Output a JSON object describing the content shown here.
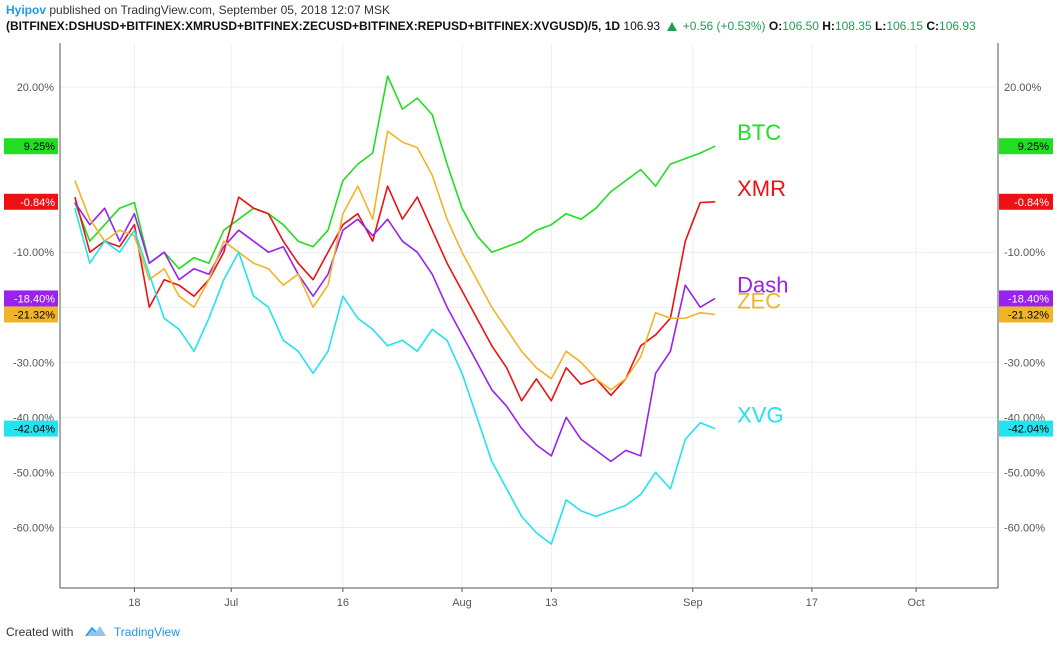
{
  "header": {
    "author": "Hyipov",
    "published": "published on TradingView.com, September 05, 2018 12:07 MSK",
    "symbol": "(BITFINEX:DSHUSD+BITFINEX:XMRUSD+BITFINEX:ZECUSD+BITFINEX:REPUSD+BITFINEX:XVGUSD)/5, 1D",
    "last": "106.93",
    "change": "+0.56 (+0.53%)",
    "o_label": "O:",
    "o": "106.50",
    "h_label": "H:",
    "h": "108.35",
    "l_label": "L:",
    "l": "106.15",
    "c_label": "C:",
    "c": "106.93"
  },
  "footer": {
    "created_with": "Created with",
    "brand": "TradingView"
  },
  "chart_data": {
    "type": "line",
    "y_unit": "%",
    "ylim": [
      -71,
      28
    ],
    "xlim": [
      "2018-06-08",
      "2018-10-12"
    ],
    "y_ticks": [
      "20.00%",
      "-10.00%",
      "-20.00%",
      "-30.00%",
      "-40.00%",
      "-50.00%",
      "-60.00%"
    ],
    "x_ticks": [
      {
        "date": "2018-06-18",
        "label": "18"
      },
      {
        "date": "2018-07-01",
        "label": "Jul"
      },
      {
        "date": "2018-07-16",
        "label": "16"
      },
      {
        "date": "2018-08-01",
        "label": "Aug"
      },
      {
        "date": "2018-08-13",
        "label": "13"
      },
      {
        "date": "2018-09-01",
        "label": "Sep"
      },
      {
        "date": "2018-09-17",
        "label": "17"
      },
      {
        "date": "2018-10-01",
        "label": "Oct"
      }
    ],
    "grid": true,
    "colors": {
      "BTC": "#22dd22",
      "XMR": "#ee1111",
      "Dash": "#9922ee",
      "ZEC": "#f0b429",
      "XVG": "#22e3ee"
    },
    "series": [
      {
        "name": "BTC",
        "label": "BTC",
        "color": "#22dd22",
        "last_badge": "9.25%",
        "x": [
          "2018-06-10",
          "2018-06-12",
          "2018-06-14",
          "2018-06-16",
          "2018-06-18",
          "2018-06-20",
          "2018-06-22",
          "2018-06-24",
          "2018-06-26",
          "2018-06-28",
          "2018-06-30",
          "2018-07-02",
          "2018-07-04",
          "2018-07-06",
          "2018-07-08",
          "2018-07-10",
          "2018-07-12",
          "2018-07-14",
          "2018-07-16",
          "2018-07-18",
          "2018-07-20",
          "2018-07-22",
          "2018-07-24",
          "2018-07-26",
          "2018-07-28",
          "2018-07-30",
          "2018-08-01",
          "2018-08-03",
          "2018-08-05",
          "2018-08-07",
          "2018-08-09",
          "2018-08-11",
          "2018-08-13",
          "2018-08-15",
          "2018-08-17",
          "2018-08-19",
          "2018-08-21",
          "2018-08-23",
          "2018-08-25",
          "2018-08-27",
          "2018-08-29",
          "2018-08-31",
          "2018-09-02",
          "2018-09-04"
        ],
        "values": [
          -1,
          -8,
          -5,
          -2,
          -1,
          -12,
          -10,
          -13,
          -11,
          -12,
          -6,
          -4,
          -2,
          -3,
          -5,
          -8,
          -9,
          -6,
          3,
          6,
          8,
          22,
          16,
          18,
          15,
          6,
          -2,
          -7,
          -10,
          -9,
          -8,
          -6,
          -5,
          -3,
          -4,
          -2,
          1,
          3,
          5,
          2,
          6,
          7,
          8,
          9.25
        ]
      },
      {
        "name": "XMR",
        "label": "XMR",
        "color": "#ee1111",
        "last_badge": "-0.84%",
        "x": [
          "2018-06-10",
          "2018-06-12",
          "2018-06-14",
          "2018-06-16",
          "2018-06-18",
          "2018-06-20",
          "2018-06-22",
          "2018-06-24",
          "2018-06-26",
          "2018-06-28",
          "2018-06-30",
          "2018-07-02",
          "2018-07-04",
          "2018-07-06",
          "2018-07-08",
          "2018-07-10",
          "2018-07-12",
          "2018-07-14",
          "2018-07-16",
          "2018-07-18",
          "2018-07-20",
          "2018-07-22",
          "2018-07-24",
          "2018-07-26",
          "2018-07-28",
          "2018-07-30",
          "2018-08-01",
          "2018-08-03",
          "2018-08-05",
          "2018-08-07",
          "2018-08-09",
          "2018-08-11",
          "2018-08-13",
          "2018-08-15",
          "2018-08-17",
          "2018-08-19",
          "2018-08-21",
          "2018-08-23",
          "2018-08-25",
          "2018-08-27",
          "2018-08-29",
          "2018-08-31",
          "2018-09-02",
          "2018-09-04"
        ],
        "values": [
          0,
          -10,
          -8,
          -9,
          -5,
          -20,
          -15,
          -16,
          -18,
          -15,
          -10,
          0,
          -2,
          -3,
          -8,
          -12,
          -15,
          -10,
          -5,
          -3,
          -8,
          2,
          -4,
          0,
          -6,
          -12,
          -17,
          -22,
          -27,
          -31,
          -37,
          -33,
          -37,
          -31,
          -34,
          -33,
          -36,
          -33,
          -27,
          -25,
          -22,
          -8,
          -1,
          -0.84
        ]
      },
      {
        "name": "Dash",
        "label": "Dash",
        "color": "#9922ee",
        "last_badge": "-18.40%",
        "x": [
          "2018-06-10",
          "2018-06-12",
          "2018-06-14",
          "2018-06-16",
          "2018-06-18",
          "2018-06-20",
          "2018-06-22",
          "2018-06-24",
          "2018-06-26",
          "2018-06-28",
          "2018-06-30",
          "2018-07-02",
          "2018-07-04",
          "2018-07-06",
          "2018-07-08",
          "2018-07-10",
          "2018-07-12",
          "2018-07-14",
          "2018-07-16",
          "2018-07-18",
          "2018-07-20",
          "2018-07-22",
          "2018-07-24",
          "2018-07-26",
          "2018-07-28",
          "2018-07-30",
          "2018-08-01",
          "2018-08-03",
          "2018-08-05",
          "2018-08-07",
          "2018-08-09",
          "2018-08-11",
          "2018-08-13",
          "2018-08-15",
          "2018-08-17",
          "2018-08-19",
          "2018-08-21",
          "2018-08-23",
          "2018-08-25",
          "2018-08-27",
          "2018-08-29",
          "2018-08-31",
          "2018-09-02",
          "2018-09-04"
        ],
        "values": [
          -1,
          -5,
          -2,
          -8,
          -3,
          -12,
          -10,
          -15,
          -13,
          -14,
          -9,
          -6,
          -8,
          -10,
          -9,
          -14,
          -18,
          -14,
          -6,
          -4,
          -7,
          -4,
          -8,
          -10,
          -14,
          -20,
          -25,
          -30,
          -35,
          -38,
          -42,
          -45,
          -47,
          -40,
          -44,
          -46,
          -48,
          -46,
          -47,
          -32,
          -28,
          -16,
          -20,
          -18.4
        ]
      },
      {
        "name": "ZEC",
        "label": "ZEC",
        "color": "#f0b429",
        "last_badge": "-21.32%",
        "x": [
          "2018-06-10",
          "2018-06-12",
          "2018-06-14",
          "2018-06-16",
          "2018-06-18",
          "2018-06-20",
          "2018-06-22",
          "2018-06-24",
          "2018-06-26",
          "2018-06-28",
          "2018-06-30",
          "2018-07-02",
          "2018-07-04",
          "2018-07-06",
          "2018-07-08",
          "2018-07-10",
          "2018-07-12",
          "2018-07-14",
          "2018-07-16",
          "2018-07-18",
          "2018-07-20",
          "2018-07-22",
          "2018-07-24",
          "2018-07-26",
          "2018-07-28",
          "2018-07-30",
          "2018-08-01",
          "2018-08-03",
          "2018-08-05",
          "2018-08-07",
          "2018-08-09",
          "2018-08-11",
          "2018-08-13",
          "2018-08-15",
          "2018-08-17",
          "2018-08-19",
          "2018-08-21",
          "2018-08-23",
          "2018-08-25",
          "2018-08-27",
          "2018-08-29",
          "2018-08-31",
          "2018-09-02",
          "2018-09-04"
        ],
        "values": [
          3,
          -4,
          -8,
          -6,
          -7,
          -15,
          -13,
          -18,
          -20,
          -15,
          -8,
          -10,
          -12,
          -13,
          -16,
          -14,
          -20,
          -16,
          -3,
          2,
          -4,
          12,
          10,
          9,
          4,
          -4,
          -10,
          -15,
          -20,
          -24,
          -28,
          -31,
          -33,
          -28,
          -30,
          -33,
          -35,
          -33,
          -29,
          -21,
          -22,
          -22,
          -21,
          -21.32
        ]
      },
      {
        "name": "XVG",
        "label": "XVG",
        "color": "#22e3ee",
        "last_badge": "-42.04%",
        "x": [
          "2018-06-10",
          "2018-06-12",
          "2018-06-14",
          "2018-06-16",
          "2018-06-18",
          "2018-06-20",
          "2018-06-22",
          "2018-06-24",
          "2018-06-26",
          "2018-06-28",
          "2018-06-30",
          "2018-07-02",
          "2018-07-04",
          "2018-07-06",
          "2018-07-08",
          "2018-07-10",
          "2018-07-12",
          "2018-07-14",
          "2018-07-16",
          "2018-07-18",
          "2018-07-20",
          "2018-07-22",
          "2018-07-24",
          "2018-07-26",
          "2018-07-28",
          "2018-07-30",
          "2018-08-01",
          "2018-08-03",
          "2018-08-05",
          "2018-08-07",
          "2018-08-09",
          "2018-08-11",
          "2018-08-13",
          "2018-08-15",
          "2018-08-17",
          "2018-08-19",
          "2018-08-21",
          "2018-08-23",
          "2018-08-25",
          "2018-08-27",
          "2018-08-29",
          "2018-08-31",
          "2018-09-02",
          "2018-09-04"
        ],
        "values": [
          -2,
          -12,
          -8,
          -10,
          -6,
          -14,
          -22,
          -24,
          -28,
          -22,
          -15,
          -10,
          -18,
          -20,
          -26,
          -28,
          -32,
          -28,
          -18,
          -22,
          -24,
          -27,
          -26,
          -28,
          -24,
          -26,
          -32,
          -40,
          -48,
          -53,
          -58,
          -61,
          -63,
          -55,
          -57,
          -58,
          -57,
          -56,
          -54,
          -50,
          -53,
          -44,
          -41,
          -42.04
        ]
      }
    ]
  }
}
